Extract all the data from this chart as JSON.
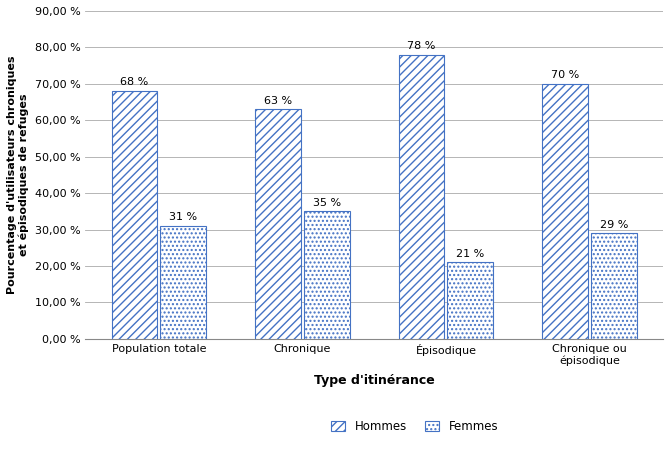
{
  "categories": [
    "Population totale",
    "Chronique",
    "Épisodique",
    "Chronique ou\népisodique"
  ],
  "hommes": [
    68,
    63,
    78,
    70
  ],
  "femmes": [
    31,
    35,
    21,
    29
  ],
  "hommes_labels": [
    "68 %",
    "63 %",
    "78 %",
    "70 %"
  ],
  "femmes_labels": [
    "31 %",
    "35 %",
    "21 %",
    "29 %"
  ],
  "ylabel": "Pourcentage d'utilisateurs chroniques\net épisodiques de refuges",
  "xlabel": "Type d'itinérance",
  "ylim": [
    0,
    90
  ],
  "yticks": [
    0,
    10,
    20,
    30,
    40,
    50,
    60,
    70,
    80,
    90
  ],
  "ytick_labels": [
    "0,00 %",
    "10,00 %",
    "20,00 %",
    "30,00 %",
    "40,00 %",
    "50,00 %",
    "60,00 %",
    "70,00 %",
    "80,00 %",
    "90,00 %"
  ],
  "bar_color": "#4472C4",
  "background_color": "#ffffff",
  "bar_width": 0.32,
  "legend_hommes": "Hommes",
  "legend_femmes": "Femmes"
}
